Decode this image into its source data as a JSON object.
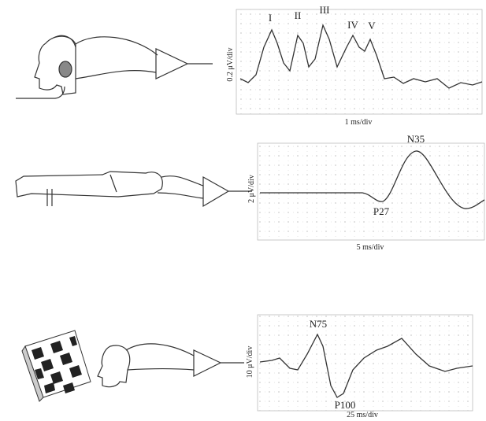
{
  "panels": [
    {
      "y_label": "0.2 μV/div",
      "x_label": "1 ms/div",
      "peaks": [
        "I",
        "II",
        "III",
        "IV",
        "V"
      ]
    },
    {
      "y_label": "2 μV/div",
      "x_label": "5 ms/div",
      "peaks": [
        "N35",
        "P27"
      ]
    },
    {
      "y_label": "10 μV/div",
      "x_label": "25 ms/div",
      "peaks": [
        "N75",
        "P100"
      ]
    }
  ]
}
